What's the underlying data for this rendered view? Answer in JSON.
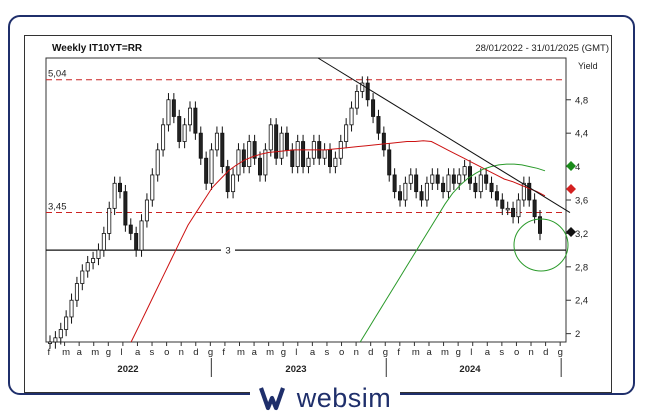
{
  "header": {
    "title": "Weekly IT10YT=RR",
    "date_range": "28/01/2022 - 31/01/2025 (GMT)",
    "y_axis_label": "Yield"
  },
  "logo": {
    "text": "websim"
  },
  "colors": {
    "resistance_line": "#cc2222",
    "ma_red": "#cc1111",
    "ma_green": "#2a9a2a",
    "trendline": "#111111",
    "frame": "#1f2f6b",
    "marker_green": "#1a8a1a",
    "marker_red": "#d42020",
    "marker_black": "#111111"
  },
  "chart_data": {
    "type": "line",
    "title": "Weekly IT10YT=RR",
    "ylabel": "Yield",
    "ylim": [
      1.9,
      5.3
    ],
    "y_ticks": [
      2,
      2.4,
      2.8,
      3.2,
      3.6,
      4,
      4.4,
      4.8
    ],
    "y_tick_labels": [
      "2",
      "2,4",
      "2,8",
      "3,2",
      "3,6",
      "4",
      "4,4",
      "4,8"
    ],
    "month_labels": [
      "f",
      "m",
      "a",
      "m",
      "g",
      "l",
      "a",
      "s",
      "o",
      "n",
      "d",
      "g",
      "f",
      "m",
      "a",
      "m",
      "g",
      "l",
      "a",
      "s",
      "o",
      "n",
      "d",
      "g",
      "f",
      "m",
      "a",
      "m",
      "g",
      "l",
      "a",
      "s",
      "o",
      "n",
      "d",
      "g"
    ],
    "years": [
      "2022",
      "2023",
      "2024"
    ],
    "horizontal_levels": [
      {
        "value": 5.04,
        "label": "5,04",
        "style": "dashed-red"
      },
      {
        "value": 3.45,
        "label": "3,45",
        "style": "dashed-red"
      },
      {
        "value": 3,
        "label": "3",
        "style": "solid-black"
      }
    ],
    "series": [
      {
        "values": [
          1.9,
          1.95,
          2.05,
          2.2,
          2.4,
          2.6,
          2.75,
          2.85,
          2.9,
          3.0,
          3.2,
          3.5,
          3.8,
          3.7,
          3.3,
          3.2,
          3.0,
          3.35,
          3.6,
          3.9,
          4.2,
          4.5,
          4.8,
          4.6,
          4.3,
          4.5,
          4.7,
          4.4,
          4.1,
          3.8,
          4.2,
          4.4,
          4.0,
          3.7,
          3.9,
          4.2,
          4.0,
          4.3,
          4.1,
          3.9,
          4.2,
          4.5,
          4.1,
          4.4,
          4.2,
          4.0,
          4.3,
          4.0,
          4.1,
          4.3,
          4.1,
          4.2,
          4.0,
          4.1,
          4.3,
          4.5,
          4.7,
          4.9,
          5.0,
          4.8,
          4.6,
          4.4,
          4.2,
          3.9,
          3.7,
          3.6,
          3.8,
          3.9,
          3.7,
          3.6,
          3.8,
          3.9,
          3.8,
          3.7,
          3.9,
          3.8,
          3.9,
          4.0,
          3.8,
          3.7,
          3.9,
          3.8,
          3.7,
          3.6,
          3.5,
          3.5,
          3.4,
          3.6,
          3.8,
          3.6,
          3.4,
          3.2
        ]
      },
      {
        "values": [
          null,
          null,
          null,
          null,
          null,
          null,
          null,
          null,
          null,
          null,
          1.9,
          2.1,
          2.3,
          2.5,
          2.7,
          2.9,
          3.1,
          3.3,
          3.45,
          3.6,
          3.75,
          3.85,
          3.95,
          4.02,
          4.08,
          4.12,
          4.15,
          4.17,
          4.18,
          4.19,
          4.2,
          4.2,
          4.2,
          4.2,
          4.2,
          4.21,
          4.22,
          4.23,
          4.24,
          4.25,
          4.26,
          4.27,
          4.28,
          4.29,
          4.3,
          4.3,
          4.31,
          4.3,
          4.25,
          4.2,
          4.15,
          4.1,
          4.05,
          4.0,
          3.95,
          3.9,
          3.85,
          3.82,
          3.78,
          3.74,
          3.7,
          3.65
        ]
      },
      {
        "values": [
          null,
          null,
          null,
          null,
          null,
          null,
          null,
          null,
          null,
          null,
          null,
          null,
          null,
          null,
          null,
          null,
          null,
          null,
          null,
          null,
          null,
          null,
          null,
          null,
          null,
          null,
          1.9,
          2.05,
          2.2,
          2.35,
          2.5,
          2.65,
          2.8,
          2.95,
          3.1,
          3.25,
          3.4,
          3.55,
          3.68,
          3.78,
          3.86,
          3.92,
          3.97,
          4.0,
          4.02,
          4.03,
          4.03,
          4.02,
          4.0,
          3.98,
          3.95
        ]
      },
      {
        "values": [
          5.3,
          3.45
        ]
      }
    ]
  }
}
